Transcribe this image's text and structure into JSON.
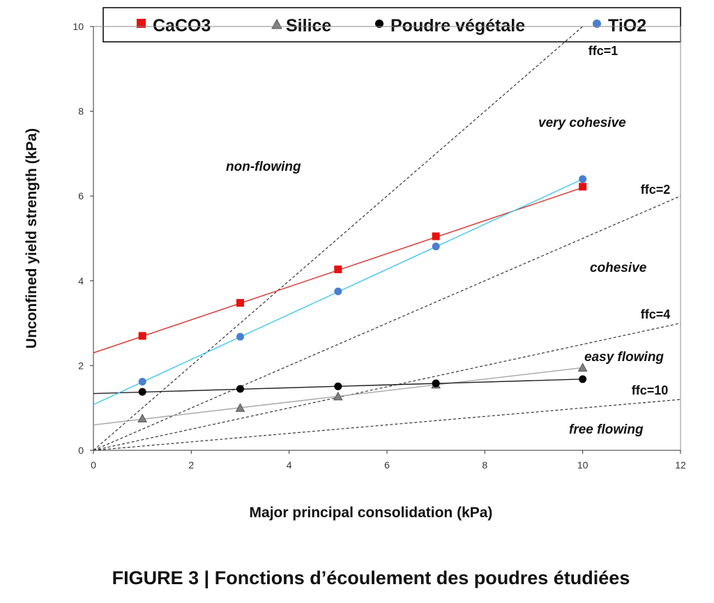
{
  "chart_data": {
    "type": "scatter",
    "xlabel": "Major principal consolidation (kPa)",
    "ylabel": "Unconfined yield strength (kPa)",
    "xlim": [
      0,
      12
    ],
    "ylim": [
      0,
      10
    ],
    "x_ticks": [
      "0",
      "2",
      "4",
      "6",
      "8",
      "10",
      "12"
    ],
    "y_ticks": [
      "0",
      "2",
      "4",
      "6",
      "8",
      "10"
    ],
    "grid": false,
    "legend_position": "top",
    "series": [
      {
        "name": "CaCO3",
        "marker": "square",
        "color": "#e8100e",
        "line_color": "#d9322c",
        "x": [
          1,
          3,
          5,
          7,
          10
        ],
        "y": [
          2.7,
          3.48,
          4.27,
          5.05,
          6.22
        ],
        "trend": {
          "slope": 0.39,
          "intercept": 2.3
        }
      },
      {
        "name": "Silice",
        "marker": "triangle",
        "color": "#808080",
        "line_color": "#a6a6a6",
        "x": [
          1,
          3,
          5,
          7,
          10
        ],
        "y": [
          0.75,
          1.0,
          1.27,
          1.55,
          1.95
        ],
        "trend": {
          "slope": 0.135,
          "intercept": 0.6
        }
      },
      {
        "name": "Poudre végétale",
        "marker": "circle",
        "color": "#000000",
        "line_color": "#222222",
        "x": [
          1,
          3,
          5,
          7,
          10
        ],
        "y": [
          1.38,
          1.45,
          1.51,
          1.58,
          1.68
        ],
        "trend": {
          "slope": 0.034,
          "intercept": 1.34
        }
      },
      {
        "name": "TiO2",
        "marker": "circle",
        "color": "#4a7fd0",
        "line_color": "#3ec6f0",
        "x": [
          1,
          3,
          5,
          7,
          10
        ],
        "y": [
          1.62,
          2.68,
          3.75,
          4.81,
          6.4
        ],
        "trend": {
          "slope": 0.532,
          "intercept": 1.08
        }
      }
    ],
    "reference_lines": [
      {
        "label": "ffc=1",
        "ffc": 1
      },
      {
        "label": "ffc=2",
        "ffc": 2
      },
      {
        "label": "ffc=4",
        "ffc": 4
      },
      {
        "label": "ffc=10",
        "ffc": 10
      }
    ],
    "regions": [
      "non-flowing",
      "very cohesive",
      "cohesive",
      "easy flowing",
      "free flowing"
    ]
  },
  "caption": "FIGURE 3 | Fonctions d’écoulement des poudres étudiées"
}
